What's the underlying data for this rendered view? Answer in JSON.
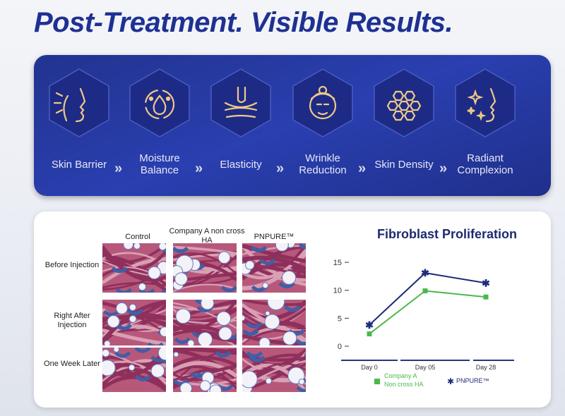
{
  "title": "Post-Treatment. Visible Results.",
  "steps": [
    {
      "label": "Skin Barrier",
      "icon": "face-barrier-icon"
    },
    {
      "label": "Moisture Balance",
      "icon": "water-drop-cycle-icon"
    },
    {
      "label": "Elasticity",
      "icon": "finger-press-icon"
    },
    {
      "label": "Wrinkle Reduction",
      "icon": "elderly-face-icon"
    },
    {
      "label": "Skin Density",
      "icon": "honeycomb-icon"
    },
    {
      "label": "Radiant Complexion",
      "icon": "sparkle-face-icon"
    }
  ],
  "histology": {
    "columns": [
      "Control",
      "Company A non cross HA",
      "PNPURE™"
    ],
    "rows": [
      "Before Injection",
      "Right After Injection",
      "One Week Later"
    ]
  },
  "colors": {
    "brand": "#1e3193",
    "accent_gold": "#f0c987",
    "series_a": "#4cb84c",
    "series_b": "#1e2a7a"
  },
  "chart_data": {
    "type": "line",
    "title": "Fibroblast Proliferation",
    "categories": [
      "Day 0",
      "Day 05",
      "Day 28"
    ],
    "yticks": [
      0,
      5,
      10,
      15
    ],
    "ylim": [
      -2,
      16
    ],
    "series": [
      {
        "name": "Company A Non cross HA",
        "values": [
          2.2,
          9.9,
          8.8
        ],
        "color": "#4cb84c",
        "marker": "square"
      },
      {
        "name": "PNPURE™",
        "values": [
          3.8,
          13.1,
          11.3
        ],
        "color": "#1e2a7a",
        "marker": "asterisk"
      }
    ],
    "legend": "bottom"
  }
}
